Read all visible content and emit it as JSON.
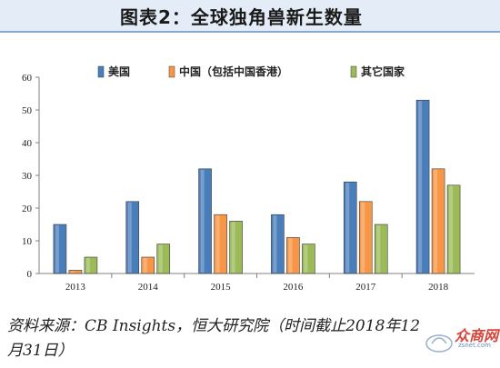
{
  "figure": {
    "title": "图表2：全球独角兽新生数量",
    "source": "资料来源：CB Insights，恒大研究院（时间截止2018年12月31日）",
    "watermark": "众商网",
    "watermark_sub": "zsnet.com"
  },
  "chart_data": {
    "type": "bar",
    "categories": [
      "2013",
      "2014",
      "2015",
      "2016",
      "2017",
      "2018"
    ],
    "series": [
      {
        "name": "美国",
        "values": [
          15,
          22,
          32,
          18,
          28,
          53
        ],
        "color": "#4a7ebb"
      },
      {
        "name": "中国（包括中国香港）",
        "values": [
          1,
          5,
          18,
          11,
          22,
          32
        ],
        "color": "#f79646"
      },
      {
        "name": "其它国家",
        "values": [
          5,
          9,
          16,
          9,
          15,
          27
        ],
        "color": "#9bbb59"
      }
    ],
    "ylim": [
      0,
      60
    ],
    "yticks": [
      0,
      10,
      20,
      30,
      40,
      50,
      60
    ],
    "xlabel": "",
    "ylabel": "",
    "legend_position": "top",
    "grid": false
  }
}
